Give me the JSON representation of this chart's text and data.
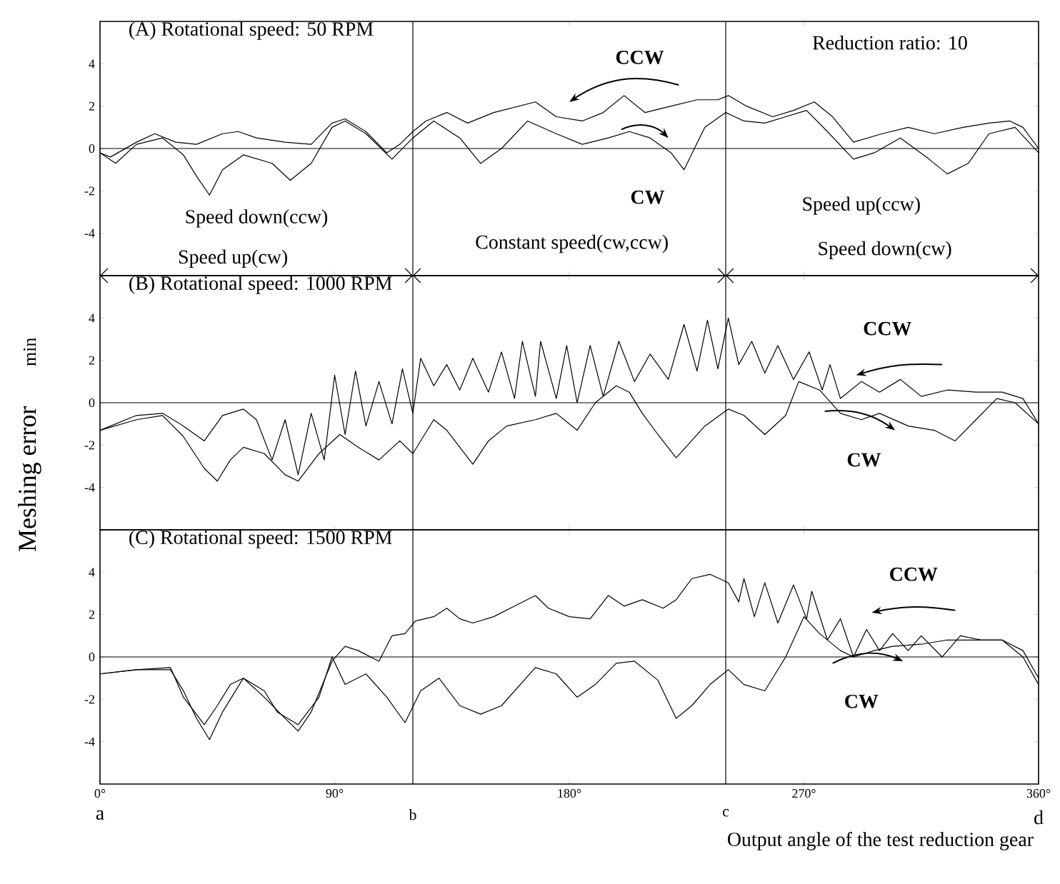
{
  "chart_data": [
    {
      "type": "line",
      "title": "(A)  Rotational speed: 50 RPM",
      "ylabel": "min",
      "xlim": [
        0,
        360
      ],
      "ylim": [
        -6,
        6
      ],
      "xticks": [
        0,
        90,
        180,
        270,
        360
      ],
      "yticks": [
        -4,
        -2,
        0,
        2,
        4
      ],
      "tick_labels": "y",
      "annotations": [
        "Reduction ratio: 10",
        "Speed down(ccw)",
        "Speed up(cw)",
        "Constant speed(cw,ccw)",
        "Speed up(ccw)",
        "Speed down(cw)"
      ],
      "ref_lines": [
        {
          "axis": "x",
          "value": 120
        },
        {
          "axis": "x",
          "value": 240
        },
        {
          "axis": "y",
          "value": 0
        }
      ],
      "series": [
        {
          "name": "CCW",
          "color": "#000000",
          "x": [
            0,
            4,
            14,
            21,
            29,
            37,
            47,
            53,
            60,
            71,
            81,
            89,
            94,
            102,
            110,
            115,
            120,
            125,
            133,
            141,
            151,
            167,
            175,
            185,
            193,
            201,
            209,
            219,
            229,
            237,
            241,
            248,
            258,
            266,
            274,
            281,
            289,
            300,
            310,
            320,
            331,
            341,
            349,
            354,
            360
          ],
          "values": [
            -0.2,
            -0.4,
            0.3,
            0.7,
            0.3,
            0.2,
            0.7,
            0.8,
            0.5,
            0.3,
            0.2,
            1.2,
            1.4,
            0.8,
            -0.2,
            0.2,
            0.8,
            1.3,
            1.7,
            1.2,
            1.7,
            2.2,
            1.5,
            1.3,
            1.7,
            2.5,
            1.7,
            2.0,
            2.3,
            2.3,
            2.5,
            2.0,
            1.5,
            1.8,
            2.2,
            1.5,
            0.3,
            0.7,
            1.0,
            0.7,
            1.0,
            1.2,
            1.3,
            1.0,
            0.0
          ]
        },
        {
          "name": "CW",
          "color": "#000000",
          "x": [
            0,
            6,
            14,
            24,
            32,
            37,
            42,
            47,
            55,
            66,
            73,
            81,
            89,
            94,
            102,
            112,
            120,
            128,
            138,
            146,
            154,
            164,
            175,
            185,
            195,
            203,
            211,
            219,
            224,
            232,
            240,
            247,
            255,
            263,
            271,
            279,
            289,
            297,
            307,
            318,
            325,
            333,
            341,
            351,
            360
          ],
          "values": [
            -0.2,
            -0.7,
            0.2,
            0.5,
            -0.3,
            -1.3,
            -2.2,
            -1.0,
            -0.3,
            -0.7,
            -1.5,
            -0.7,
            1.0,
            1.3,
            0.7,
            -0.5,
            0.5,
            1.3,
            0.5,
            -0.7,
            0.0,
            1.3,
            0.7,
            0.2,
            0.5,
            0.8,
            0.5,
            -0.2,
            -1.0,
            1.0,
            1.7,
            1.3,
            1.2,
            1.5,
            1.8,
            0.8,
            -0.5,
            -0.2,
            0.5,
            -0.5,
            -1.2,
            -0.7,
            0.7,
            1.0,
            -0.2
          ]
        }
      ]
    },
    {
      "type": "line",
      "title": "(B)  Rotational speed: 1000 RPM",
      "ylabel": "Meshing error",
      "xlim": [
        0,
        360
      ],
      "ylim": [
        -6,
        6
      ],
      "xticks": [
        0,
        90,
        180,
        270,
        360
      ],
      "yticks": [
        -4,
        -2,
        0,
        2,
        4
      ],
      "tick_labels": "y",
      "ref_lines": [
        {
          "axis": "x",
          "value": 120
        },
        {
          "axis": "x",
          "value": 240
        },
        {
          "axis": "y",
          "value": 0
        }
      ],
      "series": [
        {
          "name": "CCW",
          "color": "#000000",
          "x": [
            0,
            14,
            24,
            32,
            40,
            47,
            55,
            60,
            66,
            71,
            76,
            81,
            86,
            90,
            94,
            98,
            102,
            107,
            112,
            116,
            120,
            123,
            128,
            133,
            138,
            143,
            149,
            154,
            159,
            162,
            167,
            169,
            175,
            179,
            183,
            188,
            193,
            199,
            205,
            211,
            218,
            224,
            229,
            233,
            237,
            241,
            245,
            250,
            255,
            260,
            266,
            272,
            277,
            280,
            284,
            292,
            299,
            307,
            315,
            325,
            336,
            346,
            354,
            360
          ],
          "values": [
            -1.3,
            -0.6,
            -0.5,
            -1.1,
            -1.8,
            -0.6,
            -0.3,
            -0.8,
            -2.7,
            -0.8,
            -3.4,
            -0.5,
            -2.7,
            1.3,
            -1.5,
            1.5,
            -1.1,
            1.0,
            -1.0,
            1.6,
            -0.5,
            2.1,
            0.8,
            1.8,
            0.6,
            2.1,
            0.5,
            2.4,
            0.2,
            2.9,
            0.3,
            2.9,
            0.2,
            2.7,
            0.0,
            2.7,
            0.3,
            2.9,
            1.0,
            2.3,
            1.1,
            3.7,
            1.5,
            3.9,
            1.6,
            4.0,
            1.8,
            2.9,
            1.4,
            2.7,
            1.1,
            2.4,
            0.6,
            1.8,
            0.2,
            1.0,
            0.5,
            1.1,
            0.3,
            0.6,
            0.5,
            0.5,
            0.2,
            -1.0
          ]
        },
        {
          "name": "CW",
          "color": "#000000",
          "x": [
            0,
            14,
            24,
            32,
            40,
            45,
            50,
            55,
            63,
            71,
            76,
            84,
            92,
            99,
            107,
            115,
            120,
            128,
            133,
            138,
            143,
            149,
            156,
            167,
            175,
            183,
            190,
            198,
            203,
            208,
            214,
            221,
            232,
            241,
            247,
            255,
            263,
            268,
            276,
            284,
            292,
            299,
            310,
            320,
            328,
            336,
            344,
            351,
            360
          ],
          "values": [
            -1.3,
            -0.8,
            -0.6,
            -1.6,
            -3.1,
            -3.7,
            -2.7,
            -2.1,
            -2.4,
            -3.4,
            -3.7,
            -2.4,
            -1.5,
            -2.1,
            -2.7,
            -1.8,
            -2.4,
            -0.8,
            -1.3,
            -2.1,
            -2.9,
            -1.8,
            -1.1,
            -0.8,
            -0.5,
            -1.3,
            0.0,
            0.8,
            0.5,
            -0.5,
            -1.5,
            -2.6,
            -1.1,
            -0.3,
            -0.6,
            -1.5,
            -0.6,
            1.0,
            0.6,
            -0.5,
            -0.8,
            -0.5,
            -1.1,
            -1.3,
            -1.8,
            -0.8,
            0.2,
            0.0,
            -1.0
          ]
        }
      ]
    },
    {
      "type": "line",
      "title": "(C)  Rotational speed: 1500 RPM",
      "xlabel": "Output angle of the test reduction gear",
      "xlim": [
        0,
        360
      ],
      "ylim": [
        -6,
        6
      ],
      "xticks": [
        {
          "value": 0,
          "label": "0°"
        },
        {
          "value": 90,
          "label": "90°"
        },
        {
          "value": 180,
          "label": "180°"
        },
        {
          "value": 270,
          "label": "270°"
        },
        {
          "value": 360,
          "label": "360°"
        }
      ],
      "yticks": [
        -4,
        -2,
        0,
        2,
        4
      ],
      "annotations": [
        "a",
        "d"
      ],
      "ref_lines": [
        {
          "axis": "x",
          "value": 120,
          "label": "b"
        },
        {
          "axis": "x",
          "value": 240,
          "label": "c"
        },
        {
          "axis": "y",
          "value": 0
        }
      ],
      "series": [
        {
          "name": "CCW",
          "color": "#000000",
          "x": [
            0,
            14,
            27,
            32,
            40,
            45,
            50,
            55,
            63,
            71,
            76,
            81,
            89,
            94,
            99,
            107,
            112,
            117,
            121,
            128,
            133,
            138,
            143,
            151,
            159,
            167,
            172,
            180,
            188,
            195,
            201,
            208,
            216,
            221,
            227,
            234,
            241,
            245,
            247,
            251,
            255,
            260,
            266,
            271,
            273,
            279,
            284,
            289,
            294,
            299,
            304,
            310,
            315,
            323,
            330,
            338,
            346,
            354,
            360
          ],
          "values": [
            -0.8,
            -0.6,
            -0.5,
            -1.9,
            -3.2,
            -2.3,
            -1.3,
            -1.0,
            -1.9,
            -2.9,
            -3.5,
            -2.6,
            -0.2,
            0.5,
            0.3,
            -0.2,
            1.0,
            1.1,
            1.7,
            1.9,
            2.3,
            1.8,
            1.6,
            1.9,
            2.4,
            2.9,
            2.3,
            1.9,
            1.8,
            2.9,
            2.4,
            2.7,
            2.3,
            2.7,
            3.7,
            3.9,
            3.5,
            2.6,
            3.7,
            1.9,
            3.5,
            1.6,
            3.4,
            1.8,
            3.1,
            0.8,
            1.8,
            0.0,
            1.3,
            0.3,
            1.1,
            0.3,
            1.0,
            0.0,
            1.0,
            0.8,
            0.8,
            0.3,
            -1.0
          ]
        },
        {
          "name": "CW",
          "color": "#000000",
          "x": [
            0,
            14,
            27,
            32,
            37,
            42,
            47,
            55,
            63,
            68,
            76,
            84,
            89,
            94,
            102,
            110,
            117,
            123,
            130,
            138,
            146,
            154,
            167,
            175,
            183,
            190,
            198,
            205,
            214,
            221,
            227,
            234,
            241,
            247,
            255,
            263,
            270,
            276,
            284,
            289,
            297,
            304,
            315,
            325,
            336,
            346,
            354,
            360
          ],
          "values": [
            -0.8,
            -0.6,
            -0.6,
            -1.6,
            -2.9,
            -3.9,
            -2.6,
            -1.0,
            -1.6,
            -2.6,
            -3.2,
            -1.9,
            0.0,
            -1.3,
            -0.8,
            -1.9,
            -3.1,
            -1.6,
            -1.0,
            -2.3,
            -2.7,
            -2.3,
            -0.5,
            -0.8,
            -1.9,
            -1.3,
            -0.3,
            -0.2,
            -1.1,
            -2.9,
            -2.3,
            -1.3,
            -0.6,
            -1.3,
            -1.6,
            0.0,
            1.9,
            1.1,
            0.3,
            0.0,
            0.3,
            0.5,
            0.6,
            0.8,
            0.8,
            0.8,
            0.0,
            -1.3
          ]
        }
      ]
    }
  ]
}
